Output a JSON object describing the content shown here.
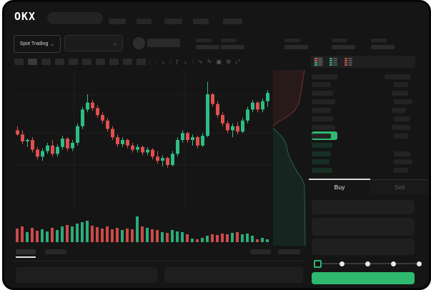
{
  "colors": {
    "up": "#2ebd85",
    "down": "#e0504e",
    "accent_green": "#2eb96f",
    "window_bg": "#151515",
    "placeholder": "#272727",
    "grid": "#1f1f1f"
  },
  "brand": {
    "logo_text": "OKX"
  },
  "top_nav": {
    "nav_item_count": 5
  },
  "market_bar": {
    "market_selector": "Spot Trading",
    "chevron": "⌄",
    "stat_pair_count": 5
  },
  "chart_toolbar": {
    "interval_button_count": 10,
    "icons": [
      {
        "name": "candle-style-icon",
        "glyph": "⫶"
      },
      {
        "name": "chevron-down-icon",
        "glyph": "⌄"
      },
      {
        "name": "indicators-icon",
        "glyph": "ƒ"
      },
      {
        "name": "chevron-down-icon",
        "glyph": "⌄"
      },
      {
        "name": "line-tool-icon",
        "glyph": "∿"
      },
      {
        "name": "draw-icon",
        "glyph": "✎"
      },
      {
        "name": "camera-icon",
        "glyph": "▣"
      },
      {
        "name": "settings-icon",
        "glyph": "⚙"
      },
      {
        "name": "fullscreen-icon",
        "glyph": "⤢"
      }
    ]
  },
  "chart_data": {
    "type": "candlestick",
    "title": "",
    "xlabel": "",
    "ylabel": "",
    "axes_labels_visible": false,
    "price_scale_units": "normalized 0-100 (no axis labels visible in screenshot)",
    "ylim": [
      0,
      100
    ],
    "grid": true,
    "candles": [
      {
        "o": 57,
        "h": 60,
        "l": 53,
        "c": 54
      },
      {
        "o": 54,
        "h": 57,
        "l": 47,
        "c": 49
      },
      {
        "o": 49,
        "h": 51,
        "l": 45,
        "c": 50
      },
      {
        "o": 50,
        "h": 52,
        "l": 41,
        "c": 43
      },
      {
        "o": 43,
        "h": 45,
        "l": 36,
        "c": 38
      },
      {
        "o": 38,
        "h": 44,
        "l": 35,
        "c": 42
      },
      {
        "o": 42,
        "h": 48,
        "l": 40,
        "c": 46
      },
      {
        "o": 46,
        "h": 50,
        "l": 38,
        "c": 40
      },
      {
        "o": 40,
        "h": 47,
        "l": 38,
        "c": 45
      },
      {
        "o": 45,
        "h": 53,
        "l": 43,
        "c": 51
      },
      {
        "o": 51,
        "h": 52,
        "l": 42,
        "c": 44
      },
      {
        "o": 44,
        "h": 50,
        "l": 42,
        "c": 48
      },
      {
        "o": 48,
        "h": 62,
        "l": 46,
        "c": 60
      },
      {
        "o": 60,
        "h": 74,
        "l": 58,
        "c": 72
      },
      {
        "o": 72,
        "h": 83,
        "l": 70,
        "c": 77
      },
      {
        "o": 77,
        "h": 79,
        "l": 71,
        "c": 73
      },
      {
        "o": 73,
        "h": 75,
        "l": 66,
        "c": 68
      },
      {
        "o": 68,
        "h": 70,
        "l": 62,
        "c": 64
      },
      {
        "o": 64,
        "h": 66,
        "l": 56,
        "c": 58
      },
      {
        "o": 58,
        "h": 60,
        "l": 50,
        "c": 52
      },
      {
        "o": 52,
        "h": 54,
        "l": 45,
        "c": 47
      },
      {
        "o": 47,
        "h": 52,
        "l": 45,
        "c": 50
      },
      {
        "o": 50,
        "h": 51,
        "l": 44,
        "c": 46
      },
      {
        "o": 46,
        "h": 48,
        "l": 41,
        "c": 43
      },
      {
        "o": 43,
        "h": 47,
        "l": 41,
        "c": 45
      },
      {
        "o": 45,
        "h": 46,
        "l": 39,
        "c": 41
      },
      {
        "o": 41,
        "h": 45,
        "l": 39,
        "c": 43
      },
      {
        "o": 43,
        "h": 44,
        "l": 36,
        "c": 38
      },
      {
        "o": 38,
        "h": 42,
        "l": 33,
        "c": 35
      },
      {
        "o": 35,
        "h": 39,
        "l": 31,
        "c": 37
      },
      {
        "o": 37,
        "h": 38,
        "l": 30,
        "c": 32
      },
      {
        "o": 32,
        "h": 42,
        "l": 31,
        "c": 40
      },
      {
        "o": 40,
        "h": 52,
        "l": 38,
        "c": 50
      },
      {
        "o": 50,
        "h": 57,
        "l": 48,
        "c": 55
      },
      {
        "o": 55,
        "h": 56,
        "l": 48,
        "c": 50
      },
      {
        "o": 50,
        "h": 54,
        "l": 46,
        "c": 52
      },
      {
        "o": 52,
        "h": 53,
        "l": 44,
        "c": 46
      },
      {
        "o": 46,
        "h": 55,
        "l": 45,
        "c": 53
      },
      {
        "o": 53,
        "h": 92,
        "l": 52,
        "c": 83
      },
      {
        "o": 83,
        "h": 84,
        "l": 74,
        "c": 76
      },
      {
        "o": 76,
        "h": 78,
        "l": 66,
        "c": 68
      },
      {
        "o": 68,
        "h": 70,
        "l": 60,
        "c": 62
      },
      {
        "o": 62,
        "h": 64,
        "l": 55,
        "c": 57
      },
      {
        "o": 57,
        "h": 62,
        "l": 52,
        "c": 60
      },
      {
        "o": 60,
        "h": 63,
        "l": 54,
        "c": 56
      },
      {
        "o": 56,
        "h": 66,
        "l": 55,
        "c": 64
      },
      {
        "o": 64,
        "h": 74,
        "l": 62,
        "c": 72
      },
      {
        "o": 72,
        "h": 79,
        "l": 70,
        "c": 77
      },
      {
        "o": 77,
        "h": 78,
        "l": 70,
        "c": 72
      },
      {
        "o": 72,
        "h": 80,
        "l": 70,
        "c": 78
      },
      {
        "o": 78,
        "h": 86,
        "l": 74,
        "c": 84
      }
    ],
    "volume": [
      52,
      60,
      38,
      55,
      45,
      50,
      42,
      56,
      46,
      62,
      66,
      60,
      72,
      78,
      82,
      64,
      58,
      54,
      60,
      50,
      56,
      46,
      52,
      50,
      100,
      62,
      56,
      50,
      46,
      40,
      36,
      46,
      42,
      40,
      30,
      14,
      12,
      18,
      26,
      30,
      28,
      32,
      30,
      36,
      40,
      30,
      34,
      24,
      10,
      16,
      12
    ]
  },
  "depth_chart": {
    "type": "depth",
    "orientation": "vertical",
    "asks_step_points": [
      [
        44,
        0
      ],
      [
        42,
        12
      ],
      [
        40,
        27
      ],
      [
        36,
        47
      ],
      [
        30,
        57
      ],
      [
        22,
        64
      ],
      [
        12,
        70
      ],
      [
        4,
        75
      ],
      [
        0,
        79
      ]
    ],
    "bids_step_points": [
      [
        0,
        81
      ],
      [
        6,
        87
      ],
      [
        12,
        93
      ],
      [
        16,
        99
      ],
      [
        19,
        106
      ],
      [
        21,
        116
      ],
      [
        25,
        126
      ],
      [
        30,
        136
      ],
      [
        36,
        146
      ],
      [
        41,
        153
      ],
      [
        44,
        162
      ],
      [
        45,
        246
      ]
    ]
  },
  "order_book": {
    "view_modes": [
      "book-combined",
      "book-bids-only",
      "book-asks-only"
    ],
    "selected_view": 0,
    "ask_row_count": 7,
    "bid_row_count": 4,
    "last_price_highlight_color": "#2eb96f"
  },
  "trade_panel": {
    "tabs": {
      "buy": "Buy",
      "sell": "Sell"
    },
    "active_tab": "Buy",
    "input_field_count": 3,
    "percent_steps": [
      0,
      25,
      50,
      75,
      100
    ],
    "slider_value_percent": 0,
    "submit_button_color": "#2eb96f",
    "submit_button_label": ""
  },
  "bottom_bar": {
    "tab_count": 2,
    "active_tab_index": 0,
    "right_control_count": 2,
    "panel_count": 2
  }
}
